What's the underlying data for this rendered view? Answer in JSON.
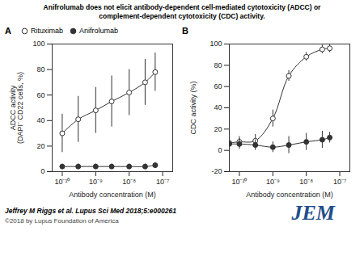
{
  "chart_data": [
    {
      "type": "line",
      "title": "Anifrolumab does not elicit antibody-dependent cell-mediated cytotoxicity (ADCC) or\ncomplement-dependent cytotoxicity (CDC) activity.",
      "annotations": [
        "A"
      ],
      "xlabel": "Antibody concentration (M)",
      "ylabel": "ADCC activity\n(DAPI⁻ CD22 cells, %)",
      "log": "x",
      "xlim": [
        5e-11,
        2e-07
      ],
      "xticks": [
        {
          "value": 1e-10,
          "label": "10⁻¹⁰"
        },
        {
          "value": 1e-09,
          "label": "10⁻⁹"
        },
        {
          "value": 1e-08,
          "label": "10⁻⁸"
        },
        {
          "value": 1e-07,
          "label": "10⁻⁷"
        }
      ],
      "ylim": [
        0,
        100
      ],
      "yticks": [
        0,
        20,
        40,
        60,
        80,
        100
      ],
      "legend": "upper left",
      "series": [
        {
          "name": "Rituximab",
          "color": "#333333",
          "marker": "circle-open",
          "line_style": "solid",
          "x": [
            1e-10,
            3e-10,
            1e-09,
            3e-09,
            1e-08,
            3e-08,
            6e-08
          ],
          "values": [
            30,
            41,
            48,
            55,
            62,
            70,
            78
          ],
          "yerr": [
            15,
            18,
            18,
            20,
            18,
            18,
            15
          ]
        },
        {
          "name": "Anifrolumab",
          "color": "#333333",
          "marker": "circle",
          "line_style": "solid",
          "x": [
            1e-10,
            3e-10,
            1e-09,
            3e-09,
            1e-08,
            3e-08,
            6e-08
          ],
          "values": [
            4,
            4,
            4,
            4,
            4,
            4,
            5
          ],
          "yerr": [
            2,
            2,
            2,
            2,
            2,
            2,
            2
          ]
        }
      ]
    },
    {
      "type": "line",
      "annotations": [
        "B",
        "Jeffrey M Riggs et al. Lupus Sci Med 2018;5:e000261",
        "©2018 by Lupus Foundation of America",
        {
          "text": "JEM",
          "color": "#1f4e8c"
        }
      ],
      "xlabel": "Antibody concentration (M)",
      "ylabel": "CDC activity (%)",
      "log": "x",
      "xlim": [
        5e-11,
        2e-07
      ],
      "xticks": [
        {
          "value": 1e-10,
          "label": "10⁻¹⁰"
        },
        {
          "value": 1e-09,
          "label": "10⁻⁹"
        },
        {
          "value": 1e-08,
          "label": "10⁻⁸"
        },
        {
          "value": 1e-07,
          "label": "10⁻⁷"
        }
      ],
      "ylim": [
        -20,
        100
      ],
      "yticks": [
        -20,
        0,
        20,
        40,
        60,
        80,
        100
      ],
      "series": [
        {
          "color": "#333333",
          "marker": "circle-open",
          "line_style": "solid",
          "x": [
            5e-11,
            1e-10,
            3e-10,
            1e-09,
            3e-09,
            1e-08,
            3e-08,
            5e-08
          ],
          "values": [
            7,
            8,
            9,
            30,
            70,
            88,
            95,
            96
          ],
          "yerr": [
            4,
            5,
            6,
            8,
            5,
            4,
            4,
            4
          ]
        },
        {
          "color": "#333333",
          "marker": "circle",
          "line_style": "solid",
          "x": [
            5e-11,
            1e-10,
            3e-10,
            1e-09,
            3e-09,
            1e-08,
            3e-08,
            5e-08
          ],
          "values": [
            6,
            6,
            5,
            3,
            5,
            8,
            10,
            12
          ],
          "yerr": [
            5,
            5,
            5,
            5,
            8,
            8,
            8,
            5
          ]
        }
      ]
    }
  ]
}
